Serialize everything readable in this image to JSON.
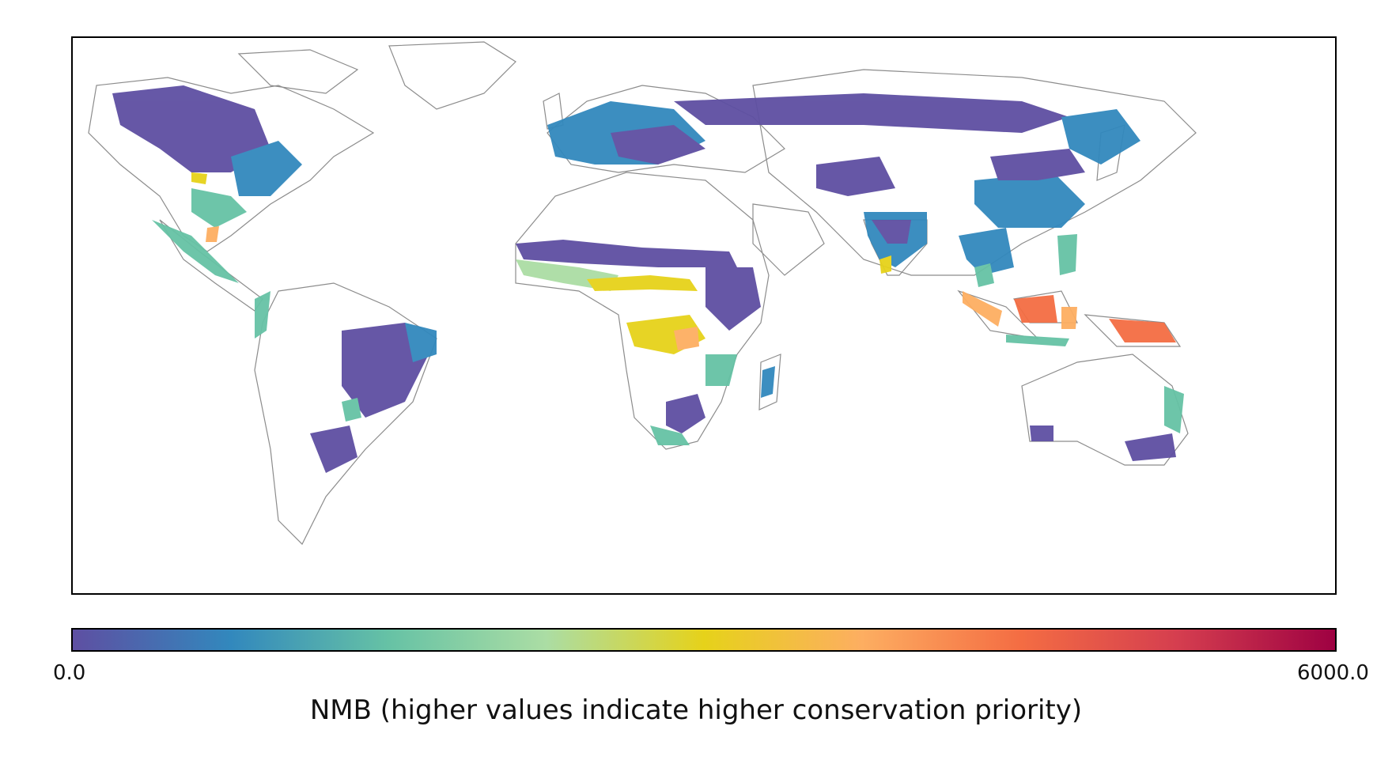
{
  "map": {
    "projection": "equirectangular world map",
    "borders_color": "#9a9a9a",
    "coast_color": "#000000"
  },
  "colorbar": {
    "min_label": "0.0",
    "max_label": "6000.0",
    "min_value": 0,
    "max_value": 6000,
    "label": "NMB (higher values indicate higher conservation priority)",
    "colormap": "Spectral_r",
    "stops": [
      "#5e4fa2",
      "#3288bd",
      "#66c2a5",
      "#abdda4",
      "#e6d21a",
      "#fdae61",
      "#f46d43",
      "#d53e4f",
      "#9e0142"
    ]
  }
}
